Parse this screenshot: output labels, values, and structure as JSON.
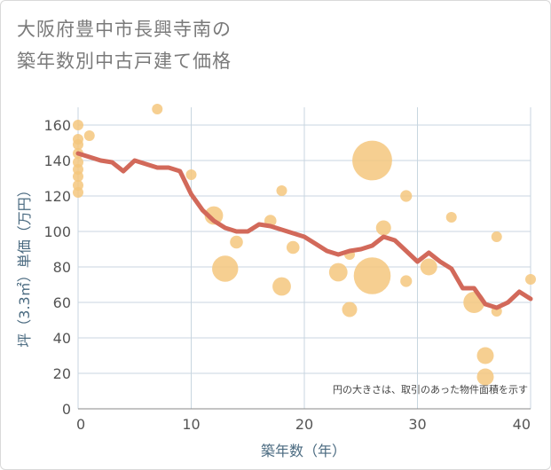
{
  "title_line1": "大阪府豊中市長興寺南の",
  "title_line2": "築年数別中古戸建て価格",
  "chart_data": {
    "type": "scatter",
    "title": "大阪府豊中市長興寺南の築年数別中古戸建て価格",
    "xlabel": "築年数（年）",
    "ylabel": "坪（3.3㎡）単価（万円）",
    "xlim": [
      0,
      40
    ],
    "ylim": [
      0,
      170
    ],
    "xticks": [
      0,
      10,
      20,
      30,
      40
    ],
    "yticks": [
      0,
      20,
      40,
      60,
      80,
      100,
      120,
      140,
      160
    ],
    "grid": true,
    "note": "円の大きさは、取引のあった物件面積を示す",
    "colors": {
      "bubble": "#f5c77e",
      "line": "#d2695a",
      "grid": "#c8d6e0"
    },
    "bubbles": [
      {
        "x": 0,
        "y": 160,
        "size": 1
      },
      {
        "x": 0,
        "y": 152,
        "size": 1
      },
      {
        "x": 0,
        "y": 149,
        "size": 1
      },
      {
        "x": 0,
        "y": 144,
        "size": 1
      },
      {
        "x": 0,
        "y": 139,
        "size": 1
      },
      {
        "x": 0,
        "y": 135,
        "size": 1
      },
      {
        "x": 0,
        "y": 131,
        "size": 1
      },
      {
        "x": 0,
        "y": 126,
        "size": 1
      },
      {
        "x": 0,
        "y": 122,
        "size": 1
      },
      {
        "x": 1,
        "y": 154,
        "size": 1
      },
      {
        "x": 7,
        "y": 169,
        "size": 1
      },
      {
        "x": 10,
        "y": 132,
        "size": 1
      },
      {
        "x": 12,
        "y": 109,
        "size": 3
      },
      {
        "x": 13,
        "y": 79,
        "size": 6
      },
      {
        "x": 14,
        "y": 94,
        "size": 1.5
      },
      {
        "x": 17,
        "y": 106,
        "size": 1.3
      },
      {
        "x": 18,
        "y": 123,
        "size": 1
      },
      {
        "x": 18,
        "y": 69,
        "size": 3
      },
      {
        "x": 19,
        "y": 91,
        "size": 1.5
      },
      {
        "x": 23,
        "y": 77,
        "size": 3
      },
      {
        "x": 24,
        "y": 87,
        "size": 1
      },
      {
        "x": 24,
        "y": 56,
        "size": 2
      },
      {
        "x": 26,
        "y": 140,
        "size": 14
      },
      {
        "x": 26,
        "y": 75,
        "size": 12
      },
      {
        "x": 27,
        "y": 102,
        "size": 2
      },
      {
        "x": 29,
        "y": 120,
        "size": 1.2
      },
      {
        "x": 29,
        "y": 72,
        "size": 1.2
      },
      {
        "x": 31,
        "y": 80,
        "size": 2.5
      },
      {
        "x": 33,
        "y": 108,
        "size": 1
      },
      {
        "x": 35,
        "y": 60,
        "size": 4
      },
      {
        "x": 36,
        "y": 30,
        "size": 2.5
      },
      {
        "x": 36,
        "y": 18,
        "size": 2.5
      },
      {
        "x": 37,
        "y": 97,
        "size": 1
      },
      {
        "x": 37,
        "y": 55,
        "size": 1
      },
      {
        "x": 40,
        "y": 73,
        "size": 1
      }
    ],
    "trend_line": {
      "x": [
        0,
        1,
        2,
        3,
        4,
        5,
        6,
        7,
        8,
        9,
        10,
        11,
        12,
        13,
        14,
        15,
        16,
        17,
        18,
        19,
        20,
        21,
        22,
        23,
        24,
        25,
        26,
        27,
        28,
        29,
        30,
        31,
        32,
        33,
        34,
        35,
        36,
        37,
        38,
        39,
        40
      ],
      "y": [
        144,
        142,
        140,
        139,
        134,
        140,
        138,
        136,
        136,
        134,
        121,
        112,
        106,
        102,
        100,
        100,
        104,
        103,
        101,
        99,
        97,
        93,
        89,
        87,
        89,
        90,
        92,
        97,
        95,
        89,
        83,
        88,
        83,
        79,
        68,
        68,
        59,
        57,
        60,
        66,
        62
      ]
    }
  }
}
